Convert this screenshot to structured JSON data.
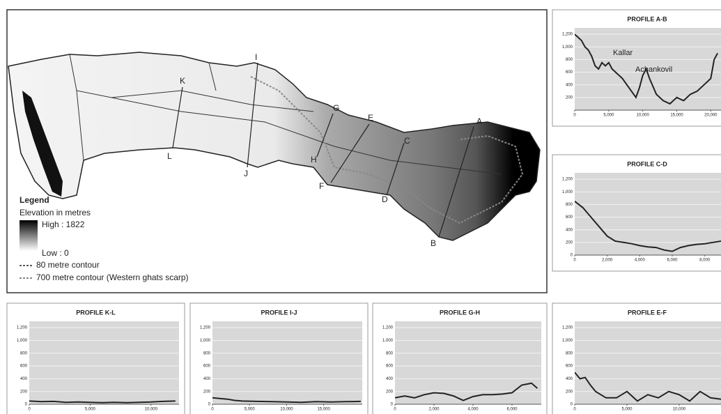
{
  "map": {
    "legend_title": "Legend",
    "elevation_label": "Elevation in metres",
    "high": "High : 1822",
    "low": "Low : 0",
    "contour_80": "80 metre contour",
    "contour_700": "700 metre contour (Western ghats scarp)",
    "points": [
      "A",
      "B",
      "C",
      "D",
      "E",
      "F",
      "G",
      "H",
      "I",
      "J",
      "K",
      "L"
    ]
  },
  "chart_data": [
    {
      "type": "line",
      "title": "PROFILE A-B",
      "annotations": [
        "Kallar",
        "Achankovil"
      ],
      "color": "#222",
      "x": [
        0,
        500,
        1000,
        1500,
        2000,
        2500,
        3000,
        3500,
        4000,
        4500,
        5000,
        5500,
        6000,
        7000,
        8000,
        9000,
        9500,
        10000,
        10500,
        11000,
        12000,
        13000,
        14000,
        15000,
        16000,
        17000,
        18000,
        19000,
        20000,
        20500,
        21000
      ],
      "values": [
        1200,
        1150,
        1100,
        1000,
        950,
        850,
        700,
        650,
        750,
        700,
        750,
        650,
        600,
        500,
        350,
        200,
        350,
        550,
        650,
        500,
        250,
        150,
        100,
        200,
        150,
        250,
        300,
        400,
        500,
        800,
        900
      ],
      "xlim": [
        0,
        21500
      ],
      "ylim": [
        0,
        1300
      ],
      "grid": true,
      "xticks": [
        0,
        {
          "value": 5000,
          "label": "5,000"
        },
        {
          "value": 10000,
          "label": "10,000"
        },
        {
          "value": 15000,
          "label": "15,000"
        },
        {
          "value": 20000,
          "label": "20,000"
        }
      ],
      "yticks": [
        200,
        400,
        600,
        800,
        {
          "value": 1000,
          "label": "1,000"
        },
        {
          "value": 1200,
          "label": "1,200"
        }
      ]
    },
    {
      "type": "line",
      "title": "PROFILE C-D",
      "color": "#222",
      "x": [
        0,
        500,
        1000,
        1500,
        2000,
        2500,
        3000,
        3500,
        4000,
        4500,
        5000,
        5500,
        6000,
        6500,
        7000,
        7500,
        8000,
        8500,
        9000
      ],
      "values": [
        850,
        750,
        600,
        450,
        300,
        220,
        200,
        180,
        150,
        130,
        120,
        80,
        60,
        120,
        150,
        170,
        180,
        200,
        220
      ],
      "xlim": [
        0,
        9000
      ],
      "ylim": [
        0,
        1300
      ],
      "grid": true,
      "xticks": [
        0,
        {
          "value": 2000,
          "label": "2,000"
        },
        {
          "value": 4000,
          "label": "4,000"
        },
        {
          "value": 6000,
          "label": "6,000"
        },
        {
          "value": 8000,
          "label": "8,000"
        }
      ],
      "yticks": [
        0,
        200,
        400,
        600,
        800,
        {
          "value": 1000,
          "label": "1,000"
        },
        {
          "value": 1200,
          "label": "1,200"
        }
      ]
    },
    {
      "type": "line",
      "title": "PROFILE K-L",
      "color": "#222",
      "x": [
        0,
        1000,
        2000,
        3000,
        4000,
        5000,
        6000,
        7000,
        8000,
        9000,
        10000,
        11000,
        12000
      ],
      "values": [
        50,
        40,
        45,
        30,
        35,
        30,
        25,
        30,
        25,
        30,
        35,
        45,
        50
      ],
      "xlim": [
        0,
        12300
      ],
      "ylim": [
        0,
        1300
      ],
      "grid": true,
      "xticks": [
        0,
        {
          "value": 5000,
          "label": "5,000"
        },
        {
          "value": 10000,
          "label": "10,000"
        }
      ],
      "yticks": [
        0,
        200,
        400,
        600,
        800,
        {
          "value": 1000,
          "label": "1,000"
        },
        {
          "value": 1200,
          "label": "1,200"
        }
      ]
    },
    {
      "type": "line",
      "title": "PROFILE I-J",
      "color": "#222",
      "x": [
        0,
        1000,
        2000,
        3000,
        4000,
        6000,
        8000,
        10000,
        12000,
        14000,
        16000,
        18000,
        20000
      ],
      "values": [
        100,
        90,
        80,
        60,
        50,
        45,
        40,
        35,
        30,
        40,
        35,
        40,
        45
      ],
      "xlim": [
        0,
        20200
      ],
      "ylim": [
        0,
        1300
      ],
      "grid": true,
      "xticks": [
        0,
        {
          "value": 5000,
          "label": "5,000"
        },
        {
          "value": 10000,
          "label": "10,000"
        },
        {
          "value": 15000,
          "label": "15,000"
        }
      ],
      "yticks": [
        0,
        200,
        400,
        600,
        800,
        {
          "value": 1000,
          "label": "1,000"
        },
        {
          "value": 1200,
          "label": "1,200"
        }
      ]
    },
    {
      "type": "line",
      "title": "PROFILE G-H",
      "color": "#222",
      "x": [
        0,
        500,
        1000,
        1500,
        2000,
        2500,
        3000,
        3500,
        4000,
        4500,
        5000,
        5500,
        6000,
        6500,
        7000,
        7300
      ],
      "values": [
        100,
        130,
        100,
        150,
        180,
        170,
        130,
        60,
        120,
        150,
        150,
        160,
        180,
        300,
        330,
        250
      ],
      "xlim": [
        0,
        7500
      ],
      "ylim": [
        0,
        1300
      ],
      "grid": true,
      "xticks": [
        0,
        {
          "value": 2000,
          "label": "2,000"
        },
        {
          "value": 4000,
          "label": "4,000"
        },
        {
          "value": 6000,
          "label": "6,000"
        }
      ],
      "yticks": [
        0,
        200,
        400,
        600,
        800,
        {
          "value": 1000,
          "label": "1,000"
        },
        {
          "value": 1200,
          "label": "1,200"
        }
      ]
    },
    {
      "type": "line",
      "title": "PROFILE E-F",
      "color": "#222",
      "x": [
        0,
        500,
        1000,
        1500,
        2000,
        2500,
        3000,
        4000,
        5000,
        6000,
        7000,
        8000,
        9000,
        10000,
        11000,
        12000,
        13000,
        14000
      ],
      "values": [
        500,
        400,
        420,
        300,
        200,
        150,
        100,
        100,
        200,
        50,
        150,
        100,
        200,
        150,
        50,
        200,
        100,
        80
      ],
      "xlim": [
        0,
        14000
      ],
      "ylim": [
        0,
        1300
      ],
      "grid": true,
      "xticks": [
        0,
        {
          "value": 5000,
          "label": "5,000"
        },
        {
          "value": 10000,
          "label": "10,000"
        }
      ],
      "yticks": [
        0,
        200,
        400,
        600,
        800,
        {
          "value": 1000,
          "label": "1,000"
        },
        {
          "value": 1200,
          "label": "1,200"
        }
      ]
    }
  ]
}
